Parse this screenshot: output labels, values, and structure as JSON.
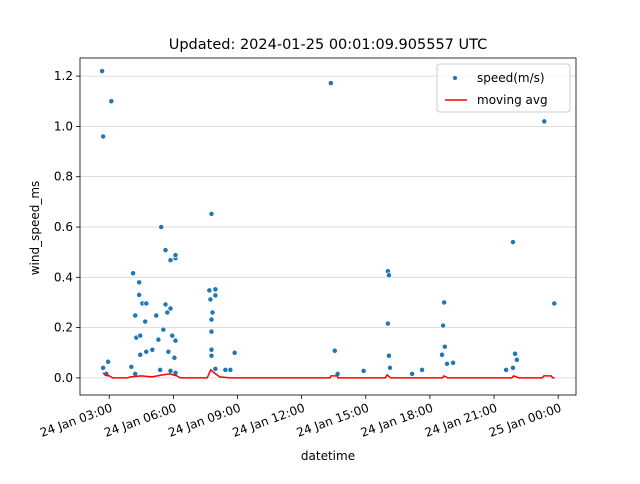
{
  "chart_data": {
    "type": "scatter-line",
    "title": "Updated: 2024-01-25 00:01:09.905557 UTC",
    "xlabel": "datetime",
    "ylabel": "wind_speed_ms",
    "xlim": [
      "24 Jan 01:38",
      "25 Jan 00:50"
    ],
    "xticks": [
      "24 Jan 03:00",
      "24 Jan 06:00",
      "24 Jan 09:00",
      "24 Jan 12:00",
      "24 Jan 15:00",
      "24 Jan 18:00",
      "24 Jan 21:00",
      "25 Jan 00:00"
    ],
    "ylim": [
      -0.068,
      1.272
    ],
    "yticks": [
      {
        "value": 0,
        "label": "0.0"
      },
      0.2,
      0.4,
      0.6,
      0.8,
      {
        "value": 1,
        "label": "1.0"
      },
      1.2
    ],
    "grid": "y",
    "legend": "upper right",
    "series": [
      {
        "name": "speed(m/s)",
        "kind": "scatter",
        "color": "#1f77b4",
        "x": [
          "24 Jan 02:40",
          "24 Jan 02:43",
          "24 Jan 02:43",
          "24 Jan 02:52",
          "24 Jan 02:57",
          "24 Jan 03:06",
          "24 Jan 04:02",
          "24 Jan 04:07",
          "24 Jan 04:13",
          "24 Jan 04:13",
          "24 Jan 04:16",
          "24 Jan 04:24",
          "24 Jan 04:24",
          "24 Jan 04:27",
          "24 Jan 04:27",
          "24 Jan 04:33",
          "24 Jan 04:41",
          "24 Jan 04:44",
          "24 Jan 04:44",
          "24 Jan 05:01",
          "24 Jan 05:12",
          "24 Jan 05:18",
          "24 Jan 05:23",
          "24 Jan 05:26",
          "24 Jan 05:32",
          "24 Jan 05:38",
          "24 Jan 05:38",
          "24 Jan 05:43",
          "24 Jan 05:46",
          "24 Jan 05:52",
          "24 Jan 05:52",
          "24 Jan 05:52",
          "24 Jan 05:57",
          "24 Jan 06:03",
          "24 Jan 06:06",
          "24 Jan 06:06",
          "24 Jan 06:06",
          "24 Jan 06:06",
          "24 Jan 07:41",
          "24 Jan 07:44",
          "24 Jan 07:47",
          "24 Jan 07:47",
          "24 Jan 07:47",
          "24 Jan 07:47",
          "24 Jan 07:47",
          "24 Jan 07:50",
          "24 Jan 07:58",
          "24 Jan 07:58",
          "24 Jan 07:58",
          "24 Jan 08:26",
          "24 Jan 08:40",
          "24 Jan 08:52",
          "24 Jan 13:22",
          "24 Jan 13:33",
          "24 Jan 13:41",
          "24 Jan 14:54",
          "24 Jan 16:02",
          "24 Jan 16:02",
          "24 Jan 16:05",
          "24 Jan 16:05",
          "24 Jan 16:08",
          "24 Jan 17:10",
          "24 Jan 17:38",
          "24 Jan 18:34",
          "24 Jan 18:37",
          "24 Jan 18:40",
          "24 Jan 18:42",
          "24 Jan 18:48",
          "24 Jan 19:05",
          "24 Jan 21:34",
          "24 Jan 21:53",
          "24 Jan 21:53",
          "24 Jan 21:59",
          "24 Jan 22:04",
          "24 Jan 23:21",
          "24 Jan 23:49"
        ],
        "values": [
          1.22,
          0.96,
          0.04,
          0.016,
          0.064,
          1.1,
          0.044,
          0.416,
          0.248,
          0.016,
          0.16,
          0.38,
          0.33,
          0.168,
          0.092,
          0.296,
          0.224,
          0.296,
          0.104,
          0.112,
          0.248,
          0.152,
          0.032,
          0.6,
          0.192,
          0.508,
          0.292,
          0.26,
          0.104,
          0.468,
          0.276,
          0.028,
          0.168,
          0.08,
          0.476,
          0.488,
          0.148,
          0.02,
          0.348,
          0.312,
          0.652,
          0.232,
          0.184,
          0.112,
          0.088,
          0.26,
          0.352,
          0.328,
          0.036,
          0.032,
          0.032,
          0.1,
          1.172,
          0.108,
          0.016,
          0.028,
          0.424,
          0.216,
          0.408,
          0.088,
          0.04,
          0.016,
          0.032,
          0.092,
          0.208,
          0.3,
          0.124,
          0.056,
          0.06,
          0.032,
          0.54,
          0.04,
          0.096,
          0.072,
          1.02,
          0.296
        ]
      },
      {
        "name": "moving avg",
        "kind": "line",
        "color": "#ff0000",
        "x": [
          "24 Jan 02:43",
          "24 Jan 02:50",
          "24 Jan 03:00",
          "24 Jan 03:10",
          "24 Jan 03:50",
          "24 Jan 04:00",
          "24 Jan 04:30",
          "24 Jan 05:00",
          "24 Jan 05:30",
          "24 Jan 05:50",
          "24 Jan 06:10",
          "24 Jan 06:20",
          "24 Jan 07:35",
          "24 Jan 07:45",
          "24 Jan 07:55",
          "24 Jan 08:10",
          "24 Jan 08:40",
          "24 Jan 13:20",
          "24 Jan 13:22",
          "24 Jan 13:40",
          "24 Jan 13:42",
          "24 Jan 15:55",
          "24 Jan 16:00",
          "24 Jan 16:10",
          "24 Jan 18:35",
          "24 Jan 18:40",
          "24 Jan 18:50",
          "24 Jan 21:50",
          "24 Jan 21:55",
          "24 Jan 22:10",
          "24 Jan 23:15",
          "24 Jan 23:20",
          "24 Jan 23:40",
          "24 Jan 23:45",
          "24 Jan 23:50"
        ],
        "values": [
          0.02,
          0.01,
          0.008,
          0,
          0,
          0.004,
          0.008,
          0.004,
          0.012,
          0.016,
          0.008,
          0,
          0,
          0.032,
          0.02,
          0.004,
          0,
          0,
          0.008,
          0.008,
          0,
          0,
          0.012,
          0,
          0,
          0.008,
          0,
          0,
          0.008,
          0,
          0,
          0.008,
          0.008,
          0,
          0
        ]
      }
    ]
  }
}
